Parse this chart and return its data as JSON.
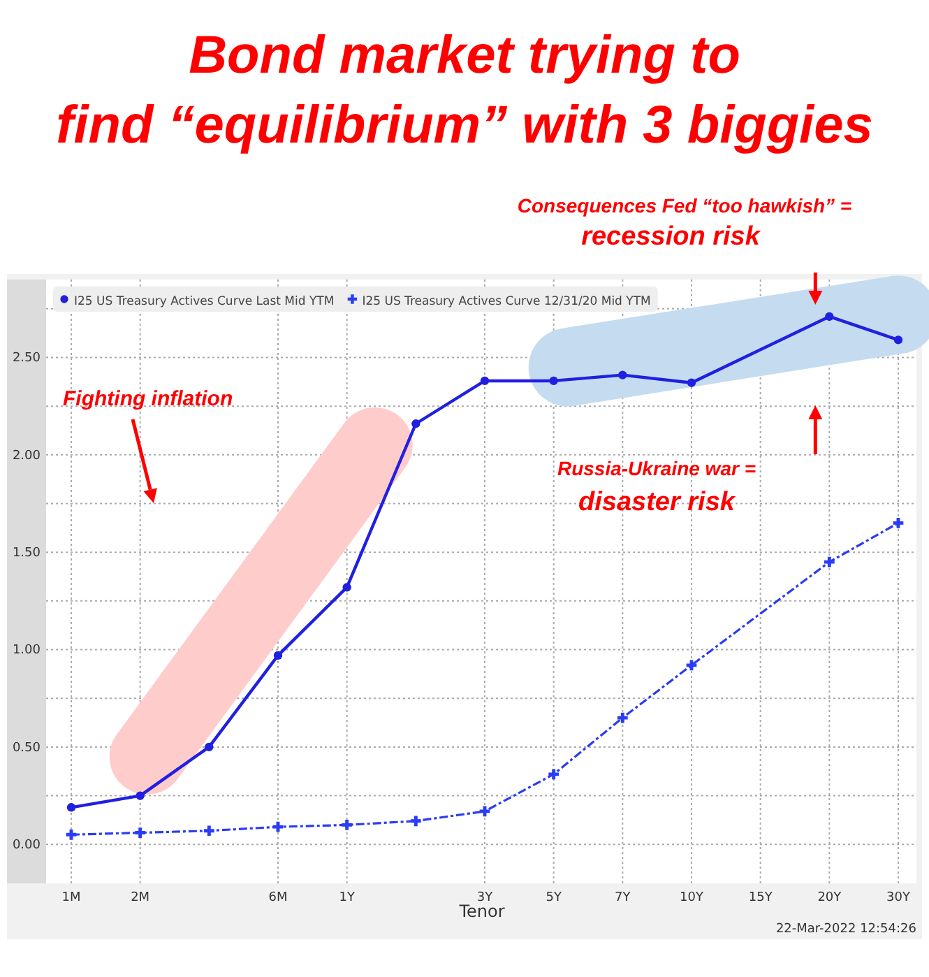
{
  "chart_data": {
    "type": "line",
    "title": "Bond market trying to find “equilibrium” with 3 biggies",
    "xlabel": "Tenor",
    "categories": [
      "1M",
      "2M",
      null,
      "6M",
      "1Y",
      null,
      "3Y",
      "5Y",
      "7Y",
      "10Y",
      "15Y",
      "20Y",
      "30Y"
    ],
    "series": [
      {
        "name": "I25 US Treasury Actives Curve Last Mid YTM",
        "color": "#2020e0",
        "marker": "circle",
        "line_style": "solid",
        "values": [
          0.19,
          0.25,
          0.5,
          0.97,
          1.32,
          2.16,
          2.38,
          2.38,
          2.41,
          2.37,
          null,
          2.71,
          2.59
        ]
      },
      {
        "name": "I25 US Treasury Actives Curve 12/31/20 Mid YTM",
        "color": "#2a3cf5",
        "marker": "cross",
        "line_style": "dashed",
        "values": [
          0.05,
          0.06,
          0.07,
          0.09,
          0.1,
          0.12,
          0.17,
          0.36,
          0.65,
          0.92,
          null,
          1.45,
          1.65
        ]
      }
    ],
    "ylim": [
      -0.2,
      2.9
    ],
    "yticks": [
      {
        "value": 0,
        "label": "0.00"
      },
      {
        "value": 0.25,
        "label": null
      },
      {
        "value": 0.5,
        "label": "0.50"
      },
      {
        "value": 0.75,
        "label": null
      },
      {
        "value": 1,
        "label": "1.00"
      },
      {
        "value": 1.25,
        "label": null
      },
      {
        "value": 1.5,
        "label": "1.50"
      },
      {
        "value": 1.75,
        "label": null
      },
      {
        "value": 2,
        "label": "2.00"
      },
      {
        "value": 2.25,
        "label": null
      },
      {
        "value": 2.5,
        "label": "2.50"
      },
      {
        "value": 2.75,
        "label": null
      }
    ],
    "grid": true,
    "legend": "top left",
    "annotations": [
      "Fighting inflation",
      "Consequences Fed “too hawkish” =",
      "recession risk",
      "Russia-Ukraine war =",
      "disaster risk",
      "22-Mar-2022 12:54:26"
    ]
  }
}
